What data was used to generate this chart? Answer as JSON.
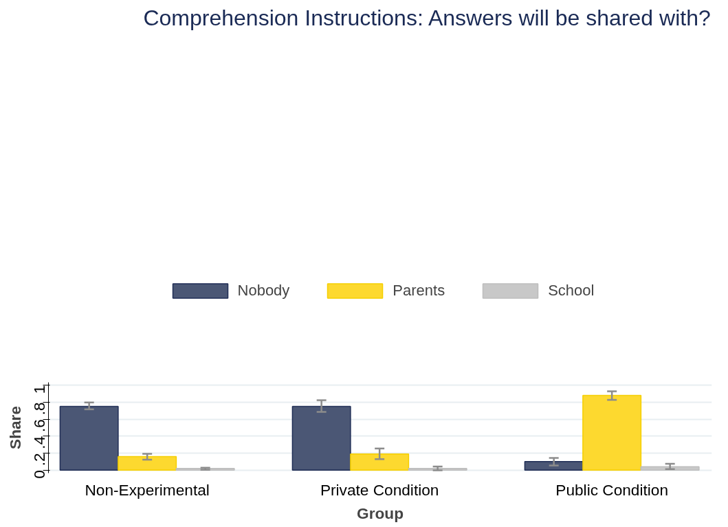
{
  "chart_data": {
    "type": "bar",
    "title": "Comprehension Instructions: Answers will be shared with?",
    "xlabel": "Group",
    "ylabel": "Share",
    "categories": [
      "Non-Experimental",
      "Private Condition",
      "Public Condition"
    ],
    "series": [
      {
        "name": "Nobody",
        "color": "#4b5775",
        "values": [
          0.75,
          0.75,
          0.1
        ],
        "errors": [
          [
            0.715,
            0.797
          ],
          [
            0.686,
            0.823
          ],
          [
            0.054,
            0.144
          ]
        ]
      },
      {
        "name": "Parents",
        "color": "#fdd92f",
        "values": [
          0.16,
          0.19,
          0.88
        ],
        "errors": [
          [
            0.122,
            0.192
          ],
          [
            0.128,
            0.254
          ],
          [
            0.826,
            0.927
          ]
        ]
      },
      {
        "name": "School",
        "color": "#c8c8c8",
        "values": [
          0.02,
          0.02,
          0.04
        ],
        "errors": [
          [
            0.003,
            0.028
          ],
          [
            -0.002,
            0.041
          ],
          [
            0.011,
            0.074
          ]
        ]
      }
    ],
    "ylim": [
      -0.035,
      1.033
    ],
    "yticks": [
      {
        "value": 0,
        "label": "0"
      },
      {
        "value": 0.2,
        "label": ".2"
      },
      {
        "value": 0.4,
        "label": ".4"
      },
      {
        "value": 0.6,
        "label": ".6"
      },
      {
        "value": 0.8,
        "label": ".8"
      },
      {
        "value": 1,
        "label": "1"
      }
    ],
    "grid": "y",
    "legend": "top"
  }
}
